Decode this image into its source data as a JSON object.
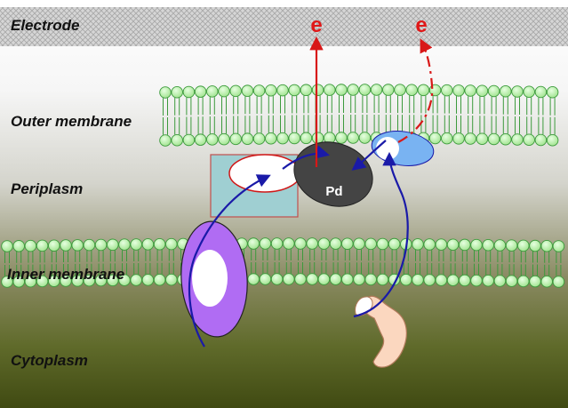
{
  "diagram": {
    "regions": [
      {
        "id": "electrode",
        "label": "Electrode"
      },
      {
        "id": "outer-membrane",
        "label": "Outer membrane"
      },
      {
        "id": "periplasm",
        "label": "Periplasm"
      },
      {
        "id": "inner-membrane",
        "label": "Inner membrane"
      },
      {
        "id": "cytoplasm",
        "label": "Cytoplasm"
      }
    ],
    "electron_labels": [
      "e",
      "e"
    ],
    "pd_label": "Pd",
    "colors": {
      "electrode": "#cfcfcf",
      "lipid_head": "#b8f0a8",
      "lipid_stroke": "#3c9a3c",
      "periplasm_box": "#9fcfd2",
      "pd_particle": "#444444",
      "blue_protein": "#79b3f2",
      "inner_protein": "#b06cf3",
      "cytoplasm_protein": "#fbd7bf",
      "electron_red": "#d81818",
      "arrow_blue": "#1a1aa8"
    }
  }
}
